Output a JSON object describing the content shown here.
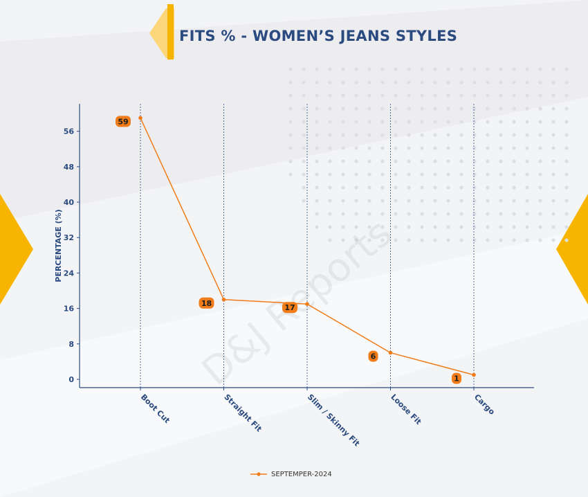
{
  "title": "FITS % - WOMEN’S JEANS STYLES",
  "watermark": "D&J Reports",
  "colors": {
    "accent": "#f5b400",
    "title": "#2b4a7f",
    "series": "#f07c1a",
    "axis": "#2b4a7f"
  },
  "legend": {
    "label": "SEPTEMPER-2024",
    "placement": "bottom-center"
  },
  "chart_data": {
    "type": "line",
    "title": "FITS % - WOMEN’S JEANS STYLES",
    "xlabel": "",
    "ylabel": "PERCENTAGE (%)",
    "categories": [
      "Boot Cut",
      "Straight Fit",
      "Slim / Skinny Fit",
      "Loose Fit",
      "Cargo"
    ],
    "series": [
      {
        "name": "SEPTEMPER-2024",
        "values": [
          59,
          18,
          17,
          6,
          1
        ]
      }
    ],
    "yticks": [
      0,
      8,
      16,
      24,
      32,
      40,
      48,
      56
    ],
    "ylim": [
      -2,
      62
    ],
    "grid": "vertical dashed at categories",
    "legend": "bottom-center"
  }
}
